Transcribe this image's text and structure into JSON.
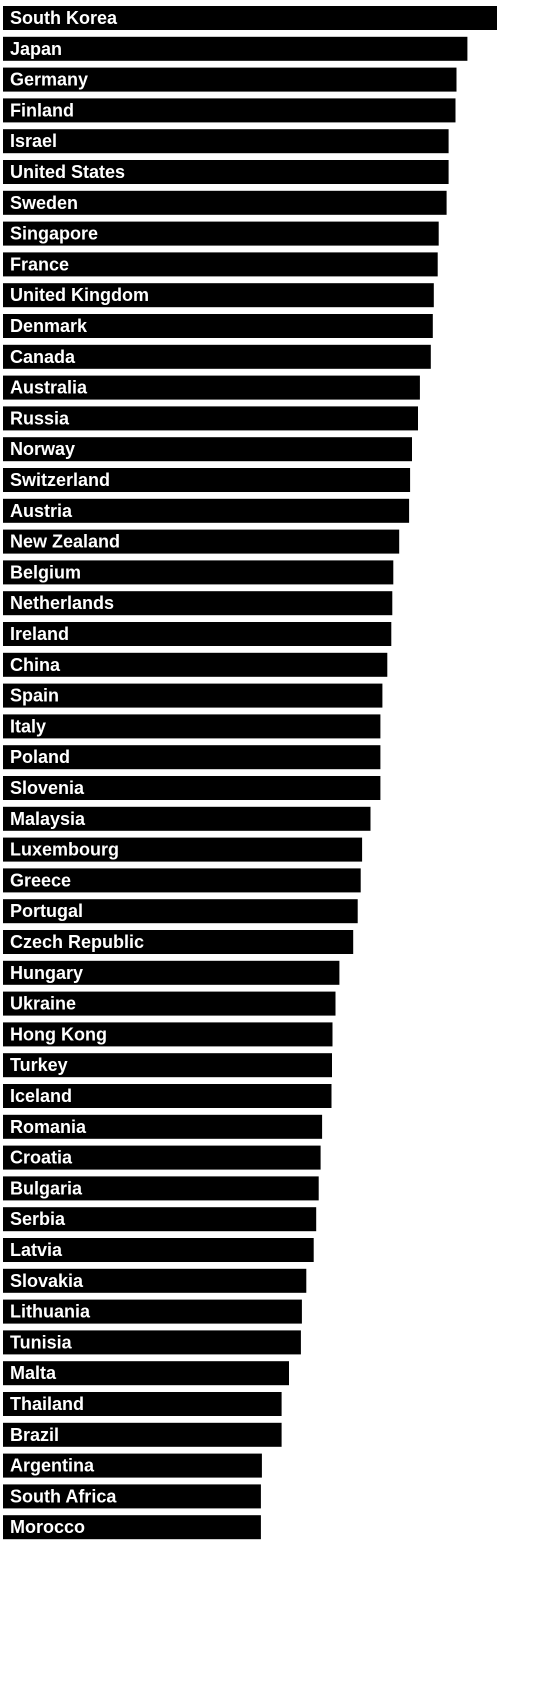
{
  "chart_data": {
    "type": "bar",
    "orientation": "horizontal",
    "bar_color": "#000000",
    "label_color": "#ffffff",
    "background_color": "#ffffff",
    "grid": false,
    "legend": "none",
    "xlim": [
      0,
      100
    ],
    "categories": [
      "South Korea",
      "Japan",
      "Germany",
      "Finland",
      "Israel",
      "United States",
      "Sweden",
      "Singapore",
      "France",
      "United Kingdom",
      "Denmark",
      "Canada",
      "Australia",
      "Russia",
      "Norway",
      "Switzerland",
      "Austria",
      "New Zealand",
      "Belgium",
      "Netherlands",
      "Ireland",
      "China",
      "Spain",
      "Italy",
      "Poland",
      "Slovenia",
      "Malaysia",
      "Luxembourg",
      "Greece",
      "Portugal",
      "Czech Republic",
      "Hungary",
      "Ukraine",
      "Hong Kong",
      "Turkey",
      "Iceland",
      "Romania",
      "Croatia",
      "Bulgaria",
      "Serbia",
      "Latvia",
      "Slovakia",
      "Lithuania",
      "Tunisia",
      "Malta",
      "Thailand",
      "Brazil",
      "Argentina",
      "South Africa",
      "Morocco"
    ],
    "values": [
      100,
      94,
      91.8,
      91.6,
      90.2,
      90.2,
      89.8,
      88.2,
      88.0,
      87.2,
      87.0,
      86.6,
      84.4,
      84.0,
      82.8,
      82.4,
      82.2,
      80.2,
      79.0,
      78.8,
      78.6,
      77.8,
      76.8,
      76.4,
      76.4,
      76.4,
      74.4,
      72.7,
      72.4,
      71.8,
      70.9,
      68.1,
      67.3,
      66.7,
      66.6,
      66.5,
      64.6,
      64.3,
      63.9,
      63.4,
      62.9,
      61.4,
      60.5,
      60.3,
      57.9,
      56.4,
      56.4,
      52.4,
      52.2,
      52.2
    ]
  }
}
